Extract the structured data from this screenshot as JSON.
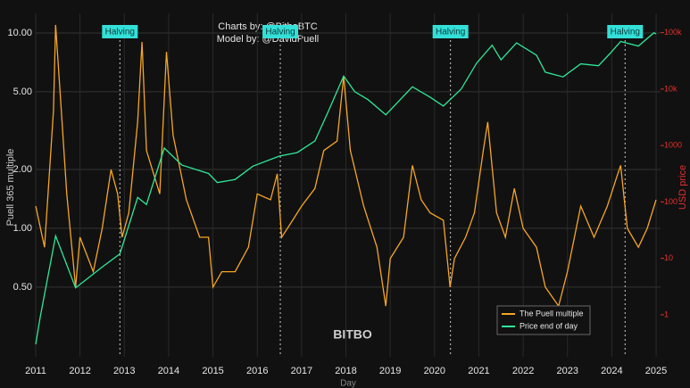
{
  "chart_data": {
    "type": "line",
    "annotations": [
      "Charts by: @BitboBTC",
      "Model by: @DavidPuell"
    ],
    "logo": "BITBO",
    "xlabel": "Day",
    "ylabel": "Puell 365 multiple",
    "y2label": "USD price",
    "log_y": true,
    "log_y2": true,
    "grid": true,
    "legend": "lower right",
    "xlim": [
      2011,
      2025.1
    ],
    "xticks": [
      2011,
      2012,
      2013,
      2014,
      2015,
      2016,
      2017,
      2018,
      2019,
      2020,
      2021,
      2022,
      2023,
      2024,
      2025
    ],
    "ylim": [
      0.22,
      12.6
    ],
    "yticks": [
      {
        "value": 0.5,
        "label": "0.50"
      },
      {
        "value": 1,
        "label": "1.00"
      },
      {
        "value": 2,
        "label": "2.00"
      },
      {
        "value": 5,
        "label": "5.00"
      },
      {
        "value": 10,
        "label": "10.00"
      }
    ],
    "y2lim": [
      0.18,
      220000
    ],
    "y2ticks": [
      1,
      10,
      100,
      1000,
      {
        "value": 10000,
        "label": "10k"
      },
      {
        "value": 100000,
        "label": "100k"
      }
    ],
    "halvings": [
      {
        "x": 2012.9,
        "label": "Halving"
      },
      {
        "x": 2016.52,
        "label": "Halving"
      },
      {
        "x": 2020.36,
        "label": "Halving"
      },
      {
        "x": 2024.3,
        "label": "Halving"
      }
    ],
    "series": [
      {
        "name": "The Puell multiple",
        "color": "#f5a623",
        "x": [
          2011.0,
          2011.2,
          2011.4,
          2011.45,
          2011.55,
          2011.7,
          2011.9,
          2012.0,
          2012.3,
          2012.5,
          2012.7,
          2012.85,
          2012.95,
          2013.1,
          2013.3,
          2013.4,
          2013.5,
          2013.8,
          2013.95,
          2014.1,
          2014.4,
          2014.7,
          2014.9,
          2015.0,
          2015.2,
          2015.5,
          2015.8,
          2016.0,
          2016.3,
          2016.45,
          2016.55,
          2016.8,
          2017.0,
          2017.3,
          2017.5,
          2017.8,
          2017.95,
          2018.1,
          2018.4,
          2018.7,
          2018.9,
          2019.0,
          2019.3,
          2019.5,
          2019.7,
          2019.9,
          2020.2,
          2020.35,
          2020.45,
          2020.7,
          2020.9,
          2021.1,
          2021.2,
          2021.4,
          2021.6,
          2021.8,
          2022.0,
          2022.3,
          2022.5,
          2022.8,
          2023.0,
          2023.3,
          2023.6,
          2023.9,
          2024.1,
          2024.2,
          2024.35,
          2024.6,
          2024.8,
          2025.0
        ],
        "values": [
          1.3,
          0.8,
          4,
          11,
          5,
          1.5,
          0.5,
          0.9,
          0.6,
          1.0,
          2.0,
          1.5,
          0.9,
          1.2,
          3.5,
          9,
          2.5,
          1.5,
          8,
          3,
          1.4,
          0.9,
          0.9,
          0.5,
          0.6,
          0.6,
          0.8,
          1.5,
          1.4,
          1.9,
          0.9,
          1.1,
          1.3,
          1.6,
          2.5,
          2.8,
          6,
          2.5,
          1.3,
          0.8,
          0.4,
          0.7,
          0.9,
          2.1,
          1.4,
          1.2,
          1.1,
          0.5,
          0.7,
          0.9,
          1.2,
          2.5,
          3.5,
          1.2,
          0.9,
          1.6,
          1.0,
          0.8,
          0.5,
          0.4,
          0.6,
          1.3,
          0.9,
          1.3,
          1.8,
          2.1,
          1.0,
          0.8,
          1.0,
          1.4
        ]
      },
      {
        "name": "Price end of day",
        "color": "#2ee89a",
        "axis": "y2",
        "x": [
          2011.0,
          2011.1,
          2011.45,
          2011.9,
          2012.5,
          2012.9,
          2013.3,
          2013.5,
          2013.9,
          2014.3,
          2014.9,
          2015.1,
          2015.5,
          2015.9,
          2016.5,
          2016.9,
          2017.3,
          2017.6,
          2017.95,
          2018.2,
          2018.5,
          2018.9,
          2019.5,
          2019.9,
          2020.2,
          2020.6,
          2020.95,
          2021.3,
          2021.5,
          2021.85,
          2022.3,
          2022.5,
          2022.9,
          2023.3,
          2023.7,
          2023.95,
          2024.2,
          2024.6,
          2024.95,
          2025.0
        ],
        "values": [
          0.3,
          0.9,
          25,
          3,
          7,
          12,
          120,
          90,
          900,
          450,
          320,
          220,
          250,
          430,
          650,
          750,
          1200,
          4000,
          17000,
          9000,
          6500,
          3500,
          11000,
          7200,
          5000,
          10000,
          29000,
          60000,
          33000,
          66000,
          40000,
          20000,
          16500,
          28000,
          26000,
          42000,
          70000,
          58000,
          100000,
          95000
        ]
      }
    ]
  }
}
